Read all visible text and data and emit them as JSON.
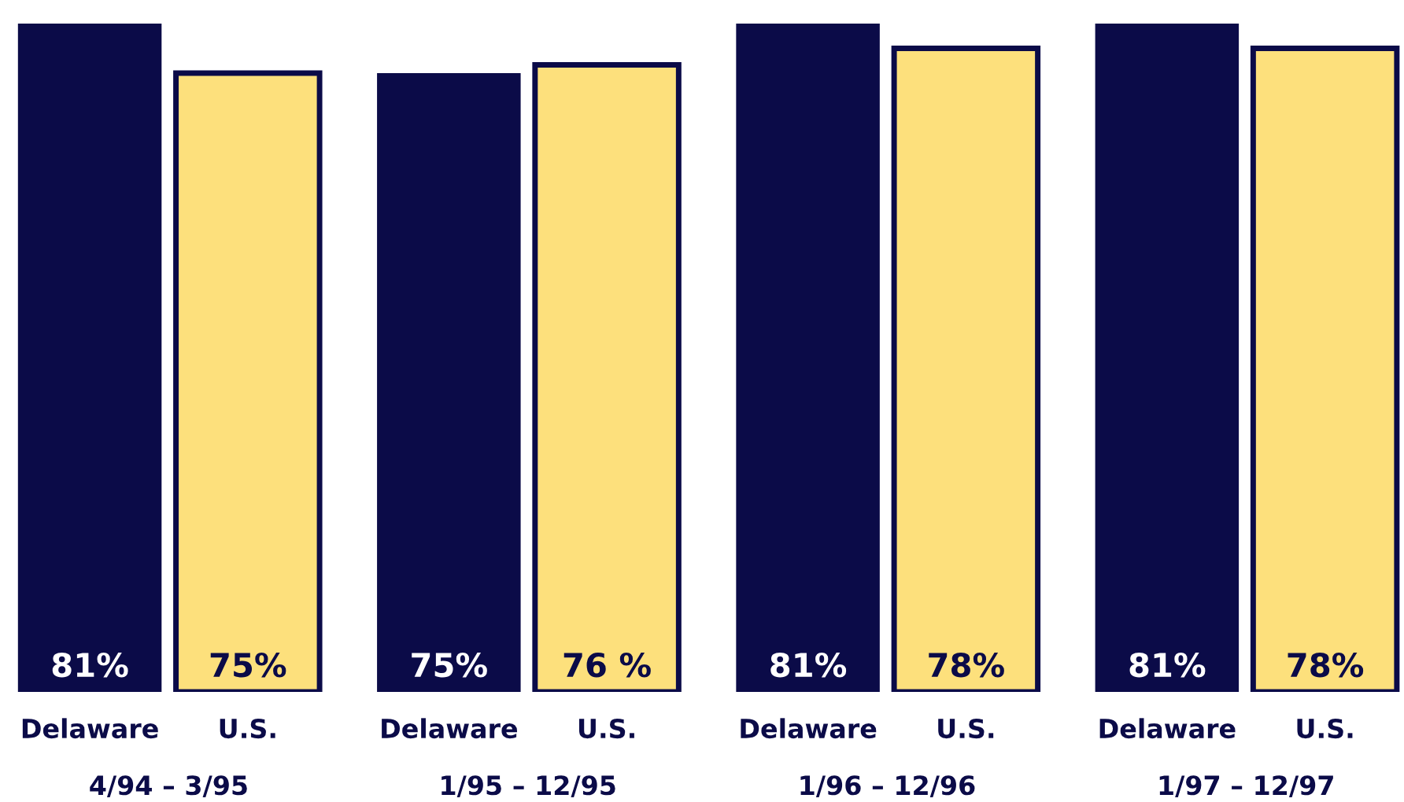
{
  "chart_data": {
    "type": "bar",
    "categories": [
      "4/94 – 3/95",
      "1/95 – 12/95",
      "1/96 – 12/96",
      "1/97 – 12/97"
    ],
    "series": [
      {
        "name": "Delaware",
        "color": "#0b0b48",
        "values": [
          81,
          75,
          81,
          81
        ],
        "value_labels": [
          "81%",
          "75%",
          "81%",
          "81%"
        ]
      },
      {
        "name": "U.S.",
        "color": "#fde07c",
        "values": [
          75,
          76,
          78,
          78
        ],
        "value_labels": [
          "75%",
          "76 %",
          "78%",
          "78%"
        ]
      }
    ],
    "legend": false
  }
}
